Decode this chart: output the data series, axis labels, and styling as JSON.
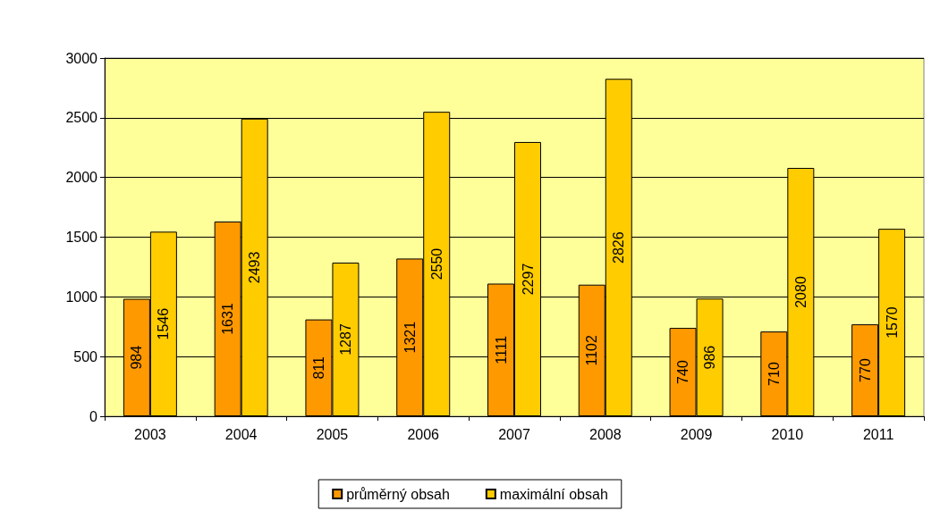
{
  "chart_data": {
    "type": "bar",
    "categories": [
      "2003",
      "2004",
      "2005",
      "2006",
      "2007",
      "2008",
      "2009",
      "2010",
      "2011"
    ],
    "series": [
      {
        "name": "průměrný obsah",
        "color": "#ff9900",
        "values": [
          984,
          1631,
          811,
          1321,
          1111,
          1102,
          740,
          710,
          770
        ]
      },
      {
        "name": "maximální obsah",
        "color": "#ffcc00",
        "values": [
          1546,
          2493,
          1287,
          2550,
          2297,
          2826,
          986,
          2080,
          1570
        ]
      }
    ],
    "ylim": [
      0,
      3000
    ],
    "yticks": [
      0,
      500,
      1000,
      1500,
      2000,
      2500,
      3000
    ],
    "grid": "y",
    "legend": "bottom",
    "data_labels": true
  }
}
